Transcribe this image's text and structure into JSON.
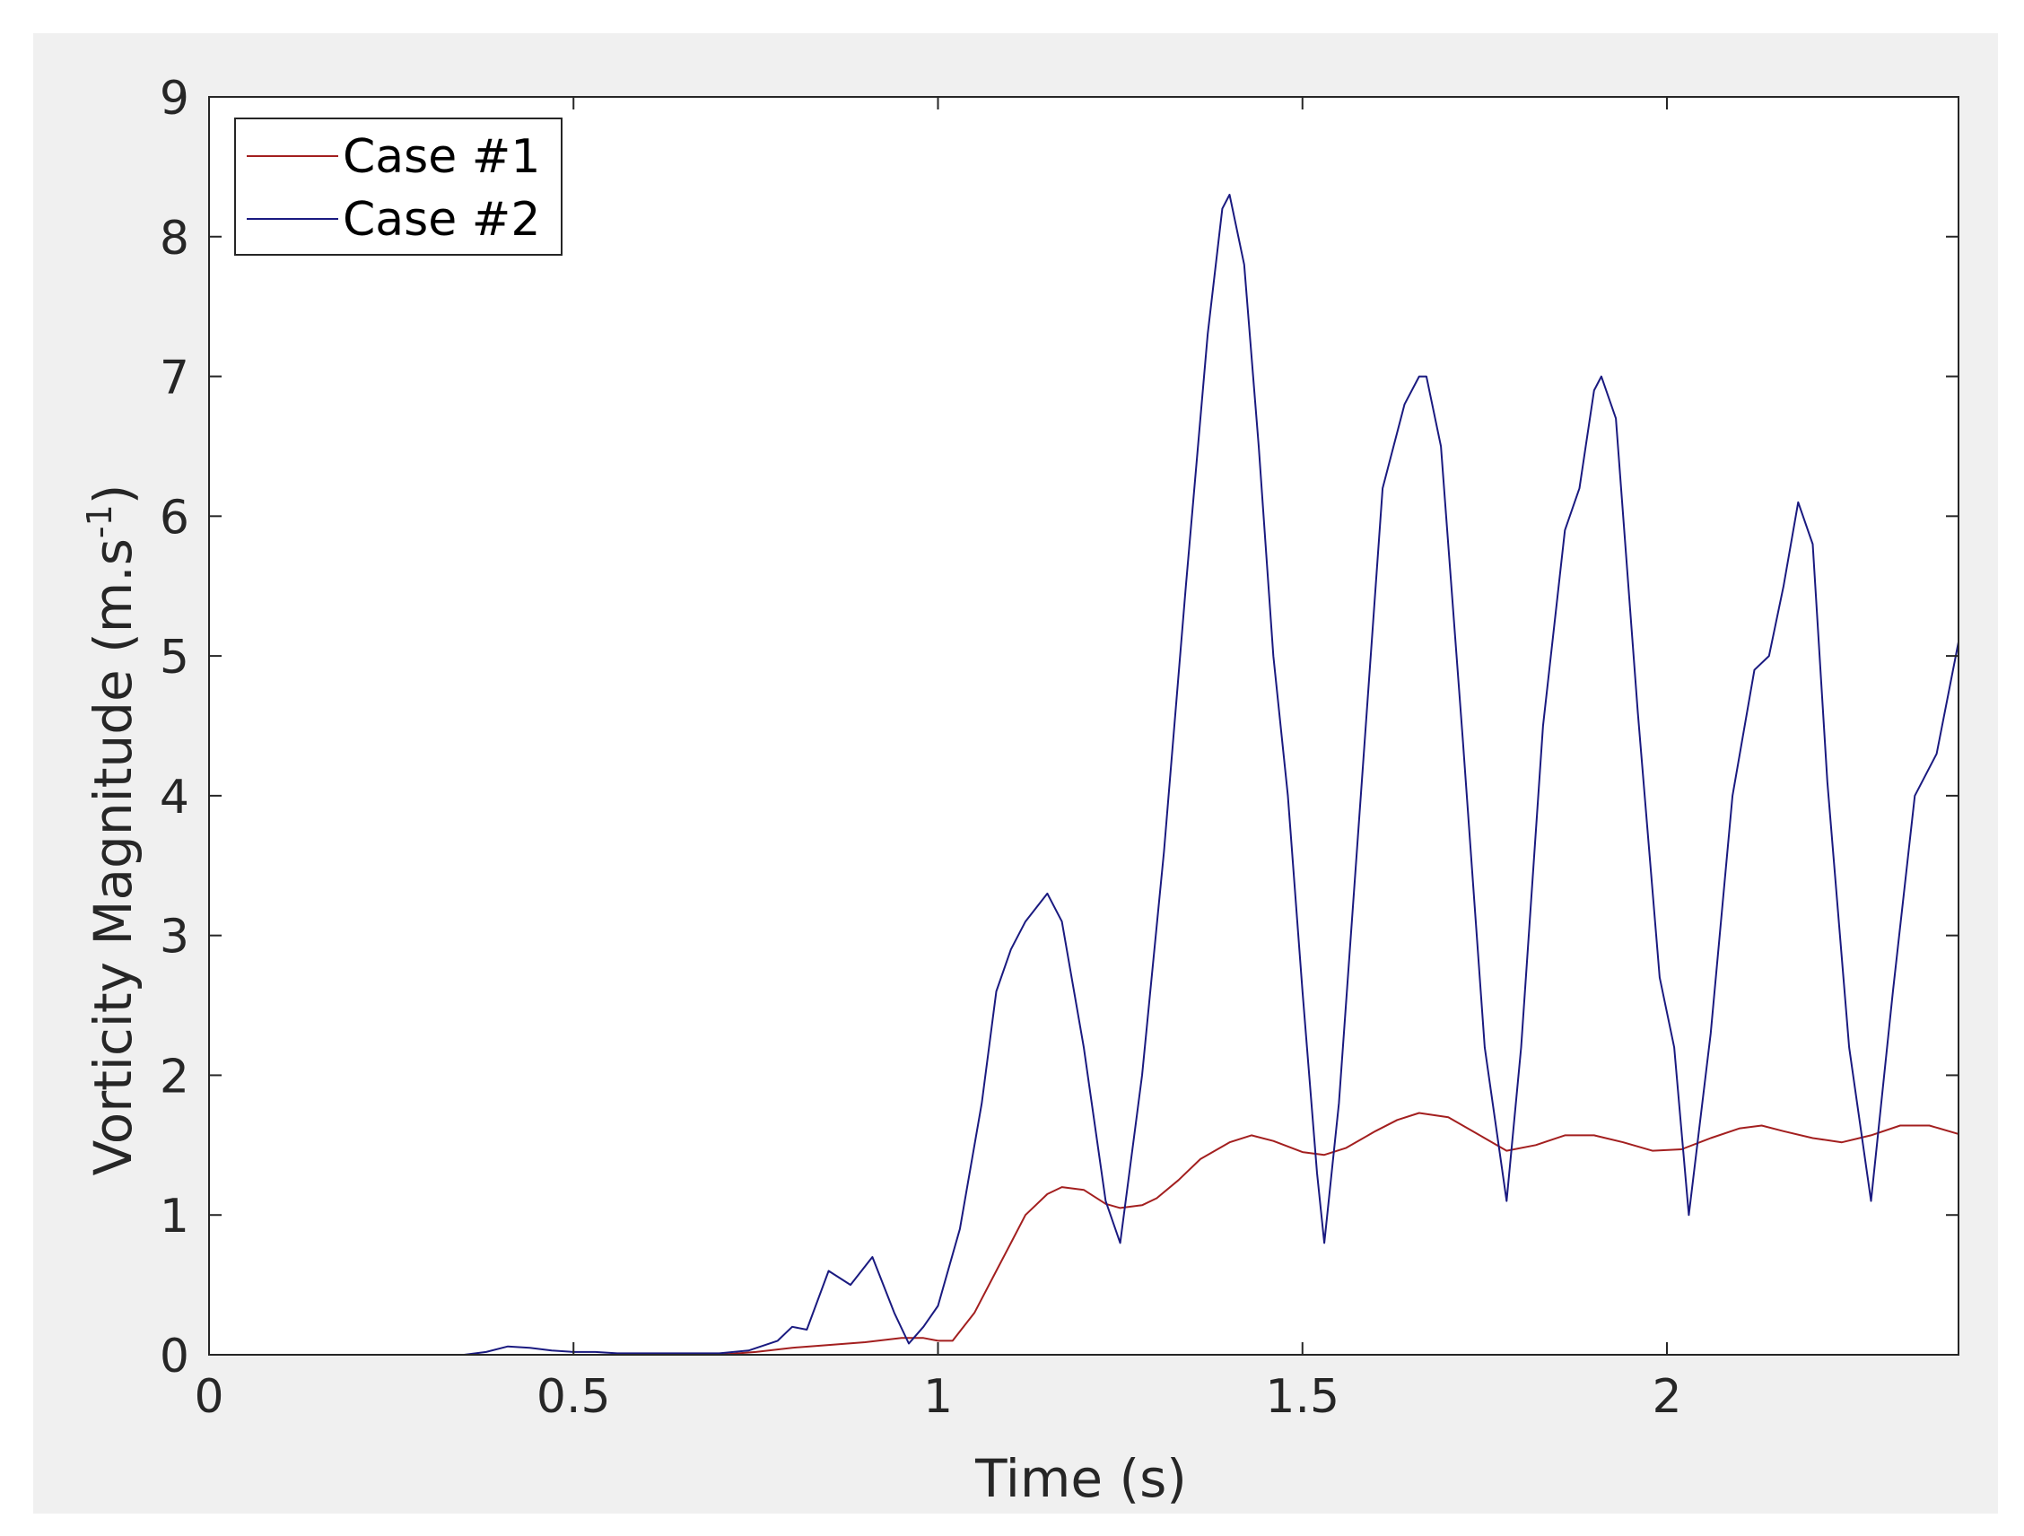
{
  "chart_data": {
    "type": "line",
    "xlabel": "Time (s)",
    "ylabel": {
      "main": "Vorticity Magnitude (m.s",
      "superscript": "-1",
      "close": ")"
    },
    "xlim": [
      0,
      2.4
    ],
    "ylim": [
      0,
      9
    ],
    "xticks": [
      0,
      0.5,
      1,
      1.5,
      2
    ],
    "xtick_labels": [
      "0",
      "0.5",
      "1",
      "1.5",
      "2"
    ],
    "yticks": [
      0,
      1,
      2,
      3,
      4,
      5,
      6,
      7,
      8,
      9
    ],
    "ytick_labels": [
      "0",
      "1",
      "2",
      "3",
      "4",
      "5",
      "6",
      "7",
      "8",
      "9"
    ],
    "grid": false,
    "legend_position": "top-left",
    "series": [
      {
        "name": "Case #1",
        "color": "#a31f1f",
        "x": [
          0,
          0.7,
          0.75,
          0.8,
          0.85,
          0.9,
          0.95,
          0.98,
          1.0,
          1.02,
          1.05,
          1.08,
          1.1,
          1.12,
          1.15,
          1.17,
          1.2,
          1.23,
          1.25,
          1.28,
          1.3,
          1.33,
          1.36,
          1.4,
          1.43,
          1.46,
          1.5,
          1.53,
          1.56,
          1.6,
          1.63,
          1.66,
          1.7,
          1.74,
          1.78,
          1.82,
          1.86,
          1.9,
          1.94,
          1.98,
          2.02,
          2.06,
          2.1,
          2.13,
          2.16,
          2.2,
          2.24,
          2.28,
          2.32,
          2.36,
          2.4
        ],
        "y": [
          0,
          0,
          0.02,
          0.05,
          0.07,
          0.09,
          0.12,
          0.12,
          0.1,
          0.1,
          0.3,
          0.6,
          0.8,
          1.0,
          1.15,
          1.2,
          1.18,
          1.08,
          1.05,
          1.07,
          1.12,
          1.25,
          1.4,
          1.52,
          1.57,
          1.53,
          1.45,
          1.43,
          1.48,
          1.6,
          1.68,
          1.73,
          1.7,
          1.58,
          1.46,
          1.5,
          1.57,
          1.57,
          1.52,
          1.46,
          1.47,
          1.55,
          1.62,
          1.64,
          1.6,
          1.55,
          1.52,
          1.57,
          1.64,
          1.64,
          1.58
        ]
      },
      {
        "name": "Case #2",
        "color": "#1a1a80",
        "x": [
          0,
          0.35,
          0.38,
          0.41,
          0.44,
          0.47,
          0.5,
          0.53,
          0.56,
          0.6,
          0.65,
          0.7,
          0.74,
          0.78,
          0.8,
          0.82,
          0.85,
          0.88,
          0.91,
          0.94,
          0.96,
          0.98,
          1.0,
          1.03,
          1.06,
          1.08,
          1.1,
          1.12,
          1.15,
          1.17,
          1.2,
          1.23,
          1.25,
          1.28,
          1.31,
          1.34,
          1.37,
          1.39,
          1.4,
          1.42,
          1.44,
          1.46,
          1.48,
          1.5,
          1.52,
          1.53,
          1.55,
          1.58,
          1.61,
          1.64,
          1.66,
          1.67,
          1.69,
          1.72,
          1.75,
          1.78,
          1.8,
          1.83,
          1.86,
          1.88,
          1.9,
          1.91,
          1.93,
          1.96,
          1.99,
          2.01,
          2.03,
          2.06,
          2.09,
          2.12,
          2.14,
          2.16,
          2.18,
          2.2,
          2.22,
          2.25,
          2.28,
          2.31,
          2.34,
          2.37,
          2.4
        ],
        "y": [
          0,
          0,
          0.02,
          0.06,
          0.05,
          0.03,
          0.02,
          0.02,
          0.01,
          0.01,
          0.01,
          0.01,
          0.03,
          0.1,
          0.2,
          0.18,
          0.6,
          0.5,
          0.7,
          0.3,
          0.08,
          0.2,
          0.35,
          0.9,
          1.8,
          2.6,
          2.9,
          3.1,
          3.3,
          3.1,
          2.2,
          1.1,
          0.8,
          2.0,
          3.6,
          5.5,
          7.3,
          8.2,
          8.3,
          7.8,
          6.5,
          5.0,
          4.0,
          2.6,
          1.3,
          0.8,
          1.8,
          4.0,
          6.2,
          6.8,
          7.0,
          7.0,
          6.5,
          4.4,
          2.2,
          1.1,
          2.2,
          4.5,
          5.9,
          6.2,
          6.9,
          7.0,
          6.7,
          4.6,
          2.7,
          2.2,
          1.0,
          2.3,
          4.0,
          4.9,
          5.0,
          5.5,
          6.1,
          5.8,
          4.1,
          2.2,
          1.1,
          2.6,
          4.0,
          4.3,
          5.1
        ]
      }
    ]
  }
}
